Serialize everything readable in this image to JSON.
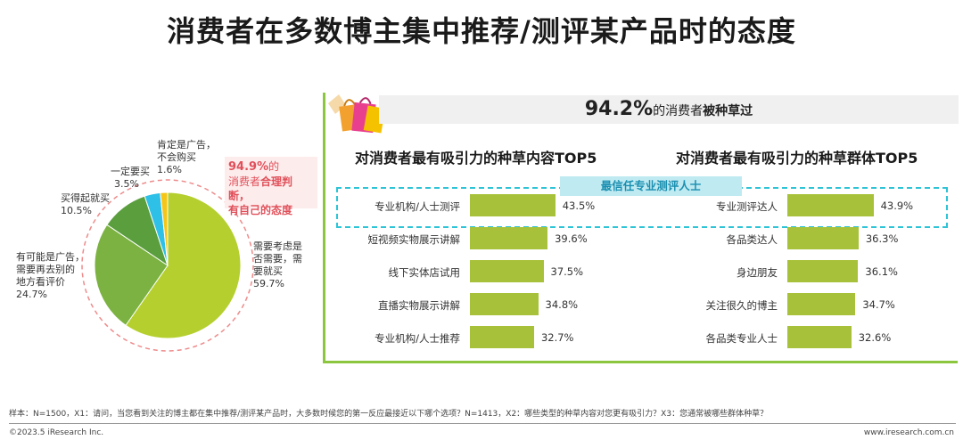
{
  "title": "消费者在多数博主集中推荐/测评某产品时的态度",
  "pie_callout": {
    "pct": "94.9%",
    "text1": "的",
    "text2": "消费者",
    "text3": "合理判断，",
    "text4": "有自己的态度"
  },
  "banner": {
    "pct": "94.2%",
    "text1": "的消费者",
    "text2": "被种草过"
  },
  "left_chart_title": "对消费者最有吸引力的种草内容TOP5",
  "right_chart_title": "对消费者最有吸引力的种草群体TOP5",
  "highlight_tag": "最信任专业测评人士",
  "pie_labels": [
    {
      "name": "肯定是广告，不会购买",
      "line1": "肯定是广告，",
      "line2": "不会购买",
      "value": "1.6%"
    },
    {
      "name": "一定要买",
      "line1": "一定要买",
      "line2": "",
      "value": "3.5%"
    },
    {
      "name": "买得起就买",
      "line1": "买得起就买",
      "line2": "",
      "value": "10.5%"
    },
    {
      "name": "有可能是广告，需要再去别的地方看评价",
      "line1": "有可能是广告，",
      "line2": "需要再去别的",
      "line3": "地方看评价",
      "value": "24.7%"
    },
    {
      "name": "需要考虑是否需要，需要就买",
      "line1": "需要考虑是",
      "line2": "否需要，需",
      "line3": "要就买",
      "value": "59.7%"
    }
  ],
  "chart_data": [
    {
      "type": "pie",
      "categories": [
        "需要考虑是否需要，需要就买",
        "有可能是广告，需要再去别的地方看评价",
        "买得起就买",
        "一定要买",
        "肯定是广告，不会购买"
      ],
      "values": [
        59.7,
        24.7,
        10.5,
        3.5,
        1.6
      ],
      "colors": [
        "#b5cf2e",
        "#7bb241",
        "#5a9e3e",
        "#2fc0e8",
        "#f5c518"
      ]
    },
    {
      "type": "bar",
      "title": "对消费者最有吸引力的种草内容TOP5",
      "categories": [
        "专业机构/人士测评",
        "短视频实物展示讲解",
        "线下实体店试用",
        "直播实物展示讲解",
        "专业机构/人士推荐"
      ],
      "values": [
        43.5,
        39.6,
        37.5,
        34.8,
        32.7
      ],
      "value_labels": [
        "43.5%",
        "39.6%",
        "37.5%",
        "34.8%",
        "32.7%"
      ]
    },
    {
      "type": "bar",
      "title": "对消费者最有吸引力的种草群体TOP5",
      "categories": [
        "专业测评达人",
        "各品类达人",
        "身边朋友",
        "关注很久的博主",
        "各品类专业人士"
      ],
      "values": [
        43.9,
        36.3,
        36.1,
        34.7,
        32.6
      ],
      "value_labels": [
        "43.9%",
        "36.3%",
        "36.1%",
        "34.7%",
        "32.6%"
      ]
    }
  ],
  "footer": {
    "note": "样本：N=1500，X1：请问，当您看到关注的博主都在集中推荐/测评某产品时，大多数时候您的第一反应最接近以下哪个选项？N=1413，X2：哪些类型的种草内容对您更有吸引力？X3：您通常被哪些群体种草？",
    "copyright": "©2023.5 iResearch Inc.",
    "site": "www.iresearch.com.cn"
  }
}
